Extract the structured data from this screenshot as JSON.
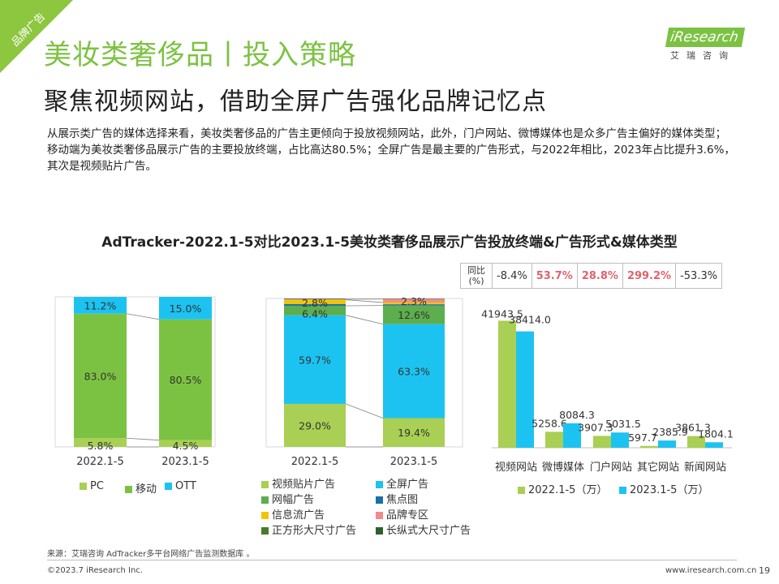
{
  "corner_tag": "品牌广告",
  "title": "美妆类奢侈品丨投入策略",
  "subtitle": "聚焦视频网站，借助全屏广告强化品牌记忆点",
  "logo": {
    "brand": "iResearch",
    "cn": "艾瑞咨询"
  },
  "intro": "从展示类广告的媒体选择来看，美妆类奢侈品的广告主更倾向于投放视频网站，此外，门户网站、微博媒体也是众多广告主偏好的媒体类型；移动端为美妆类奢侈品展示广告的主要投放终端，占比高达80.5%；全屏广告是最主要的广告形式，与2022年相比，2023年占比提升3.6%，其次是视频贴片广告。",
  "chart_title": "AdTracker-2022.1-5对比2023.1-5美妆类奢侈品展示广告投放终端&广告形式&媒体类型",
  "yoy": {
    "header": "同比(%)",
    "values": [
      "-8.4%",
      "53.7%",
      "28.8%",
      "299.2%",
      "-53.3%"
    ],
    "positive_color": "#e0636b"
  },
  "chart_data": [
    {
      "type": "bar",
      "stacked": true,
      "categories": [
        "2022.1-5",
        "2023.1-5"
      ],
      "series": [
        {
          "name": "PC",
          "color": "#a9cf54",
          "values": [
            5.8,
            4.5
          ],
          "labels": [
            "5.8%",
            "4.5%"
          ]
        },
        {
          "name": "移动",
          "color": "#7cc242",
          "values": [
            83.0,
            80.5
          ],
          "labels": [
            "83.0%",
            "80.5%"
          ]
        },
        {
          "name": "OTT",
          "color": "#1cc3f0",
          "values": [
            11.2,
            15.0
          ],
          "labels": [
            "11.2%",
            "15.0%"
          ]
        }
      ]
    },
    {
      "type": "bar",
      "stacked": true,
      "categories": [
        "2022.1-5",
        "2023.1-5"
      ],
      "series": [
        {
          "name": "视频贴片广告",
          "color": "#a9cf54",
          "values": [
            29.0,
            19.4
          ],
          "labels": [
            "29.0%",
            "19.4%"
          ]
        },
        {
          "name": "全屏广告",
          "color": "#1cc3f0",
          "values": [
            59.7,
            63.3
          ],
          "labels": [
            "59.7%",
            "63.3%"
          ]
        },
        {
          "name": "网幅广告",
          "color": "#5cae4e",
          "values": [
            6.4,
            12.6
          ],
          "labels": [
            "6.4%",
            "12.6%"
          ]
        },
        {
          "name": "焦点图",
          "color": "#1a6fa6",
          "values": [
            1.2,
            0.8
          ],
          "labels": [
            "",
            ""
          ]
        },
        {
          "name": "信息流广告",
          "color": "#f5c400",
          "values": [
            2.8,
            1.2
          ],
          "labels": [
            "2.8%",
            ""
          ]
        },
        {
          "name": "品牌专区",
          "color": "#f28b8b",
          "values": [
            0.4,
            2.3
          ],
          "labels": [
            "",
            "2.3%"
          ]
        },
        {
          "name": "正方形大尺寸广告",
          "color": "#4a7a2a",
          "values": [
            0.3,
            0.3
          ],
          "labels": [
            "",
            ""
          ]
        },
        {
          "name": "长纵式大尺寸广告",
          "color": "#2f5f2f",
          "values": [
            0.2,
            0.1
          ],
          "labels": [
            "",
            ""
          ]
        }
      ]
    },
    {
      "type": "bar",
      "categories": [
        "视频网站",
        "微博媒体",
        "门户网站",
        "其它网站",
        "新闻网站"
      ],
      "series": [
        {
          "name": "2022.1-5（万）",
          "color": "#a9cf54",
          "values": [
            41943.5,
            5258.6,
            3907.3,
            597.7,
            3861.3
          ]
        },
        {
          "name": "2023.1-5（万）",
          "color": "#1cc3f0",
          "values": [
            38414.0,
            8084.3,
            5031.5,
            2385.9,
            1804.1
          ]
        }
      ],
      "ylim": [
        0,
        45000
      ]
    }
  ],
  "footer": {
    "source": "来源：艾瑞咨询 AdTracker多平台网络广告监测数据库 。",
    "copyright": "©2023.7 iResearch Inc.",
    "url": "www.iresearch.com.cn",
    "page": "19"
  }
}
